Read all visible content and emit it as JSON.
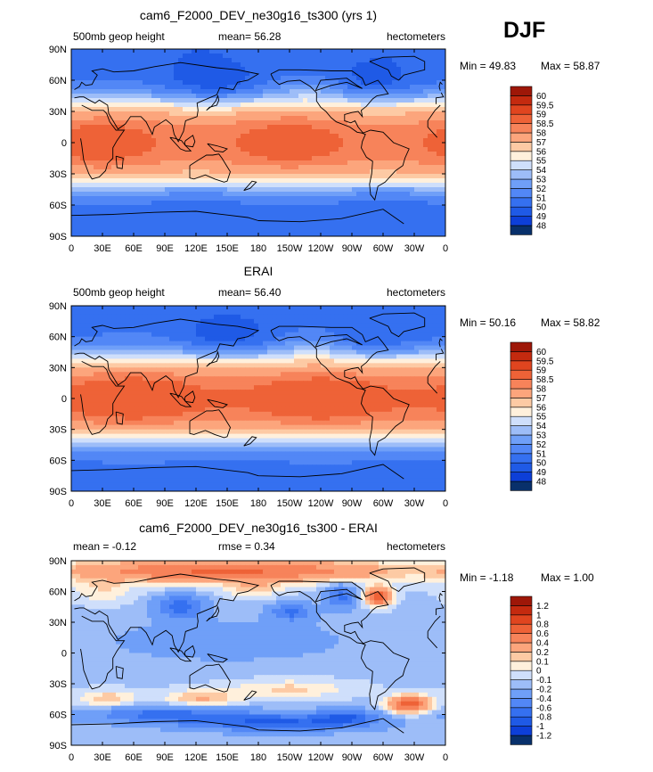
{
  "season": "DJF",
  "chart_data": [
    {
      "type": "heatmap",
      "title": "cam6_F2000_DEV_ne30g16_ts300 (yrs 1)",
      "left_label": "500mb geop height",
      "center_label": "mean=  56.28",
      "right_label": "hectometers",
      "min_text": "Min =  49.83",
      "max_text": "Max =  58.87",
      "levels": [
        "48",
        "49",
        "50",
        "51",
        "52",
        "53",
        "54",
        "55",
        "56",
        "57",
        "58",
        "58.5",
        "59",
        "59.5",
        "60"
      ],
      "colors": [
        "#08306b",
        "#0d3fd8",
        "#1f5ae6",
        "#3570f0",
        "#5287f6",
        "#6f9ff8",
        "#9dbdf8",
        "#cfdffb",
        "#fff0dc",
        "#fdcaa4",
        "#fca57c",
        "#f7835a",
        "#ee6237",
        "#e0451f",
        "#c42a0f",
        "#9e1708"
      ],
      "field": "model_z500"
    },
    {
      "type": "heatmap",
      "title": "ERAI",
      "left_label": "500mb geop height",
      "center_label": "mean=  56.40",
      "right_label": "hectometers",
      "min_text": "Min =  50.16",
      "max_text": "Max =  58.82",
      "levels": [
        "48",
        "49",
        "50",
        "51",
        "52",
        "53",
        "54",
        "55",
        "56",
        "57",
        "58",
        "58.5",
        "59",
        "59.5",
        "60"
      ],
      "colors": [
        "#08306b",
        "#0d3fd8",
        "#1f5ae6",
        "#3570f0",
        "#5287f6",
        "#6f9ff8",
        "#9dbdf8",
        "#cfdffb",
        "#fff0dc",
        "#fdcaa4",
        "#fca57c",
        "#f7835a",
        "#ee6237",
        "#e0451f",
        "#c42a0f",
        "#9e1708"
      ],
      "field": "obs_z500"
    },
    {
      "type": "heatmap",
      "title": "cam6_F2000_DEV_ne30g16_ts300 - ERAI",
      "left_label": "mean =  -0.12",
      "center_label": "rmse =    0.34",
      "right_label": "hectometers",
      "min_text": "Min =  -1.18",
      "max_text": "Max =    1.00",
      "levels": [
        "-1.2",
        "-1",
        "-0.8",
        "-0.6",
        "-0.4",
        "-0.2",
        "-0.1",
        "0",
        "0.1",
        "0.2",
        "0.4",
        "0.6",
        "0.8",
        "1",
        "1.2"
      ],
      "colors": [
        "#08306b",
        "#0d3fd8",
        "#1f5ae6",
        "#3570f0",
        "#5287f6",
        "#6f9ff8",
        "#9dbdf8",
        "#cfdffb",
        "#fff0dc",
        "#fdcaa4",
        "#fca57c",
        "#f7835a",
        "#ee6237",
        "#e0451f",
        "#c42a0f",
        "#9e1708"
      ],
      "field": "difference"
    }
  ],
  "axes": {
    "lat_ticks": [
      "90N",
      "60N",
      "30N",
      "0",
      "30S",
      "60S",
      "90S"
    ],
    "lon_ticks": [
      "0",
      "30E",
      "60E",
      "90E",
      "120E",
      "150E",
      "180",
      "150W",
      "120W",
      "90W",
      "60W",
      "30W",
      "0"
    ]
  }
}
